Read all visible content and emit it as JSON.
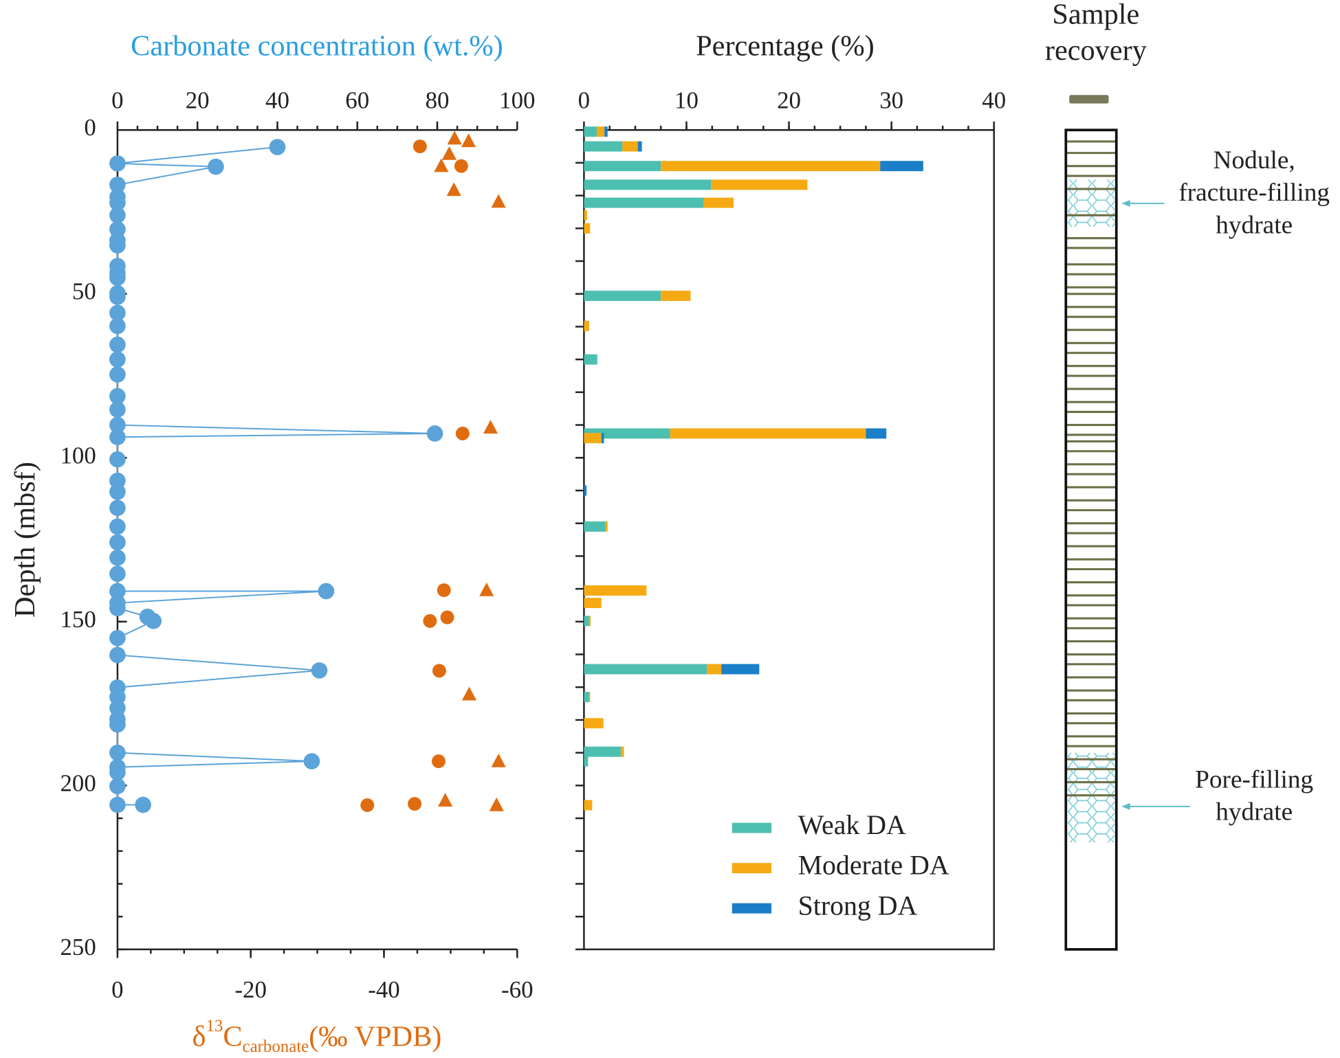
{
  "chart_data": [
    {
      "type": "scatter",
      "xlabel": "Carbonate concentration (wt.%)",
      "ylabel": "Depth (mbsf)",
      "xlim": [
        0,
        100
      ],
      "xticks": [
        0,
        20,
        40,
        60,
        80,
        100
      ],
      "x_minor_ticks": [
        0,
        5,
        10,
        15,
        20,
        25,
        30,
        35,
        40,
        45,
        50,
        55,
        60,
        65,
        70,
        75,
        80,
        85,
        90,
        95,
        100
      ],
      "x2lim": [
        0,
        -60
      ],
      "x2ticks": [
        0,
        -20,
        -40,
        -60
      ],
      "x2_minor_ticks": [
        0,
        -5,
        -10,
        -15,
        -20,
        -25,
        -30,
        -35,
        -40,
        -45,
        -50,
        -55,
        -60
      ],
      "x2label_parts": [
        "δ",
        "13",
        "C",
        "carbonate",
        "(‰ VPDB)"
      ],
      "ylim": [
        0,
        250
      ],
      "y_inverted": true,
      "yticks": [
        0,
        50,
        100,
        150,
        200,
        250
      ],
      "y_minor_ticks": [
        0,
        10,
        20,
        30,
        40,
        50,
        60,
        70,
        80,
        90,
        100,
        110,
        120,
        130,
        140,
        150,
        160,
        170,
        180,
        190,
        200,
        210,
        220,
        230,
        240,
        250
      ],
      "series": [
        {
          "color": "#5ba3d9",
          "marker": "circle",
          "line": true,
          "axis": "x",
          "x": [
            40,
            0,
            24.6,
            0,
            0,
            0,
            0,
            0,
            0,
            0,
            0,
            0,
            0,
            0,
            0,
            0,
            0,
            0,
            0,
            0,
            0,
            0,
            0,
            79.4,
            0,
            0,
            0,
            0,
            0,
            0,
            0,
            0,
            0,
            0,
            52.2,
            0,
            0,
            7.5,
            9,
            0,
            0,
            50.5,
            0,
            0,
            0,
            0,
            0,
            0,
            48.6,
            0,
            0,
            0,
            0,
            6.4
          ],
          "y": [
            5.2,
            10.2,
            11.2,
            16.7,
            20.4,
            22.2,
            26,
            30.3,
            33.7,
            35.2,
            41.5,
            43.6,
            45.1,
            49.8,
            50.9,
            55.8,
            59.8,
            65.5,
            70,
            74.6,
            81.2,
            85.3,
            90,
            92.6,
            93.7,
            100.5,
            107,
            110.4,
            115.3,
            121,
            125.8,
            130.5,
            135.4,
            140.7,
            140.7,
            144.3,
            145.9,
            148.5,
            149.8,
            155,
            160.2,
            164.9,
            170.1,
            173,
            176.4,
            179.8,
            181.4,
            190,
            192.6,
            194.4,
            196,
            200.2,
            205.9,
            205.9
          ]
        },
        {
          "color": "#e06c10",
          "marker": "circle",
          "line": false,
          "axis": "x2",
          "x": [
            -45.4,
            -51.6,
            -51.8,
            -49,
            -49.5,
            -46.9,
            -48.3,
            -48.2,
            -37.5,
            -44.6
          ],
          "y": [
            5,
            11,
            92.6,
            140.4,
            148.7,
            149.8,
            165,
            192.6,
            206,
            205.6
          ]
        },
        {
          "color": "#e06c10",
          "marker": "triangle",
          "line": false,
          "axis": "x2",
          "x": [
            -50.6,
            -52.7,
            -49.8,
            -48.6,
            -50.5,
            -57.2,
            -56,
            -55.4,
            -52.8,
            -57.2,
            -49.2,
            -56.9
          ],
          "y": [
            2.6,
            3.4,
            7.3,
            11,
            18.3,
            21.9,
            90.8,
            140.4,
            172.2,
            192.6,
            204.6,
            206
          ]
        }
      ]
    },
    {
      "type": "stacked_hbar",
      "xlabel": "Percentage (%)",
      "xlim": [
        0,
        40
      ],
      "xticks": [
        0,
        10,
        20,
        30,
        40
      ],
      "x_minor_ticks": [
        0,
        2.5,
        5,
        7.5,
        10,
        12.5,
        15,
        17.5,
        20,
        22.5,
        25,
        27.5,
        30,
        32.5,
        35,
        37.5,
        40
      ],
      "ylim": [
        0,
        250
      ],
      "y_inverted": true,
      "y_minor_ticks": [
        0,
        10,
        20,
        30,
        40,
        50,
        60,
        70,
        80,
        90,
        100,
        110,
        120,
        130,
        140,
        150,
        160,
        170,
        180,
        190,
        200,
        210,
        220,
        230,
        240,
        250
      ],
      "y": [
        0.5,
        5,
        11,
        16.7,
        22.2,
        26,
        30,
        50.6,
        59.8,
        70,
        92.6,
        94,
        110,
        121,
        140.5,
        144.3,
        149.8,
        164.5,
        173,
        181,
        189.7,
        192.6,
        206
      ],
      "legend": "lower right",
      "series": [
        {
          "name": "Weak DA",
          "color": "#4dbfb0",
          "values": [
            1.25,
            3.75,
            7.5,
            12.4,
            11.7,
            0,
            0,
            7.5,
            0,
            1.3,
            8.4,
            0,
            0,
            2.1,
            0,
            0,
            0.5,
            12,
            0.5,
            0,
            3.6,
            0.4,
            0
          ]
        },
        {
          "name": "Moderate DA",
          "color": "#f5aa14",
          "values": [
            0.75,
            1.5,
            21.4,
            9.4,
            2.9,
            0.3,
            0.6,
            2.9,
            0.5,
            0,
            19.1,
            1.7,
            0,
            0.2,
            6.1,
            1.7,
            0.15,
            1.4,
            0.1,
            1.9,
            0.3,
            0,
            0.8
          ]
        },
        {
          "name": "Strong DA",
          "color": "#1a7fc8",
          "values": [
            0.3,
            0.4,
            4.2,
            0,
            0,
            0,
            0,
            0,
            0,
            0,
            2,
            0.25,
            0.25,
            0,
            0,
            0,
            0,
            3.7,
            0,
            0,
            0,
            0,
            0
          ]
        }
      ]
    },
    {
      "type": "column",
      "title_lines": [
        "Sample",
        "recovery"
      ],
      "ylim": [
        0,
        250
      ],
      "y_inverted": true,
      "layer_depths": [
        3.5,
        7,
        11,
        14,
        18,
        26,
        33,
        36,
        41,
        44,
        48,
        50,
        54,
        57,
        61,
        65,
        68,
        72,
        75,
        79,
        83,
        86,
        90,
        93,
        95,
        98,
        102,
        105,
        109,
        113,
        116,
        120,
        123,
        127,
        131,
        134,
        138,
        142,
        145,
        149,
        152,
        156,
        160,
        163,
        167,
        171,
        174,
        178,
        181,
        185,
        188,
        192,
        195,
        199,
        203
      ],
      "hydrate_zones": [
        [
          15.1,
          29.5
        ],
        [
          190,
          217.4
        ]
      ],
      "annotations": [
        {
          "lines": [
            "Nodule,",
            "fracture-filling",
            "hydrate"
          ],
          "depth": 22.4
        },
        {
          "lines": [
            "Pore-filling",
            "hydrate"
          ],
          "depth": 206.4
        }
      ]
    }
  ]
}
